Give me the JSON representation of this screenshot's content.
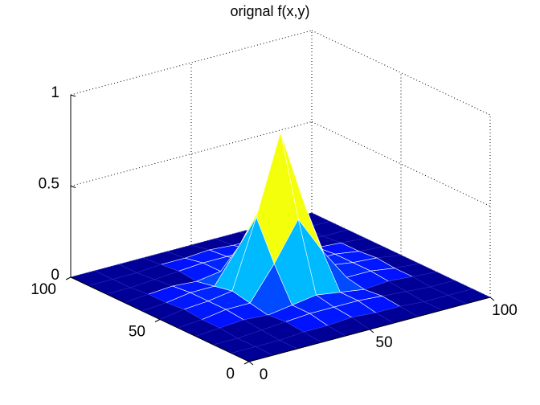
{
  "chart_data": {
    "type": "mesh",
    "title": "orignal f(x,y)",
    "x": [
      0,
      10,
      20,
      30,
      40,
      50,
      60,
      70,
      80,
      90,
      100
    ],
    "y": [
      0,
      10,
      20,
      30,
      40,
      50,
      60,
      70,
      80,
      90,
      100
    ],
    "z": [
      [
        0,
        0,
        0,
        0,
        0,
        0,
        0,
        0,
        0,
        0,
        0
      ],
      [
        0,
        0,
        0,
        0.01,
        0.01,
        0.02,
        0.01,
        0.01,
        0,
        0,
        0
      ],
      [
        0,
        0,
        0.01,
        0.02,
        0.03,
        0.03,
        0.03,
        0.02,
        0.01,
        0,
        0
      ],
      [
        0,
        0.01,
        0.02,
        0.01,
        0.03,
        0.05,
        0.03,
        0.01,
        0.02,
        0.01,
        0
      ],
      [
        0,
        0.01,
        0.03,
        0.03,
        0.21,
        0.42,
        0.21,
        0.03,
        0.03,
        0.01,
        0
      ],
      [
        0,
        0.02,
        0.03,
        0.05,
        0.42,
        0.85,
        0.42,
        0.05,
        0.03,
        0.02,
        0
      ],
      [
        0,
        0.01,
        0.03,
        0.03,
        0.21,
        0.42,
        0.21,
        0.03,
        0.03,
        0.01,
        0
      ],
      [
        0,
        0.01,
        0.02,
        0.01,
        0.03,
        0.05,
        0.03,
        0.01,
        0.02,
        0.01,
        0
      ],
      [
        0,
        0,
        0.01,
        0.02,
        0.03,
        0.03,
        0.03,
        0.02,
        0.01,
        0,
        0
      ],
      [
        0,
        0,
        0,
        0.01,
        0.01,
        0.02,
        0.01,
        0.01,
        0,
        0,
        0
      ],
      [
        0,
        0,
        0,
        0,
        0,
        0,
        0,
        0,
        0,
        0,
        0
      ]
    ],
    "xlim": [
      0,
      100
    ],
    "ylim": [
      0,
      100
    ],
    "zlim": [
      0,
      1
    ],
    "xticks": [
      0,
      50,
      100
    ],
    "yticks": [
      0,
      50,
      100
    ],
    "zticks": [
      0,
      0.5,
      1
    ],
    "grid": true,
    "colormap": "jet"
  }
}
